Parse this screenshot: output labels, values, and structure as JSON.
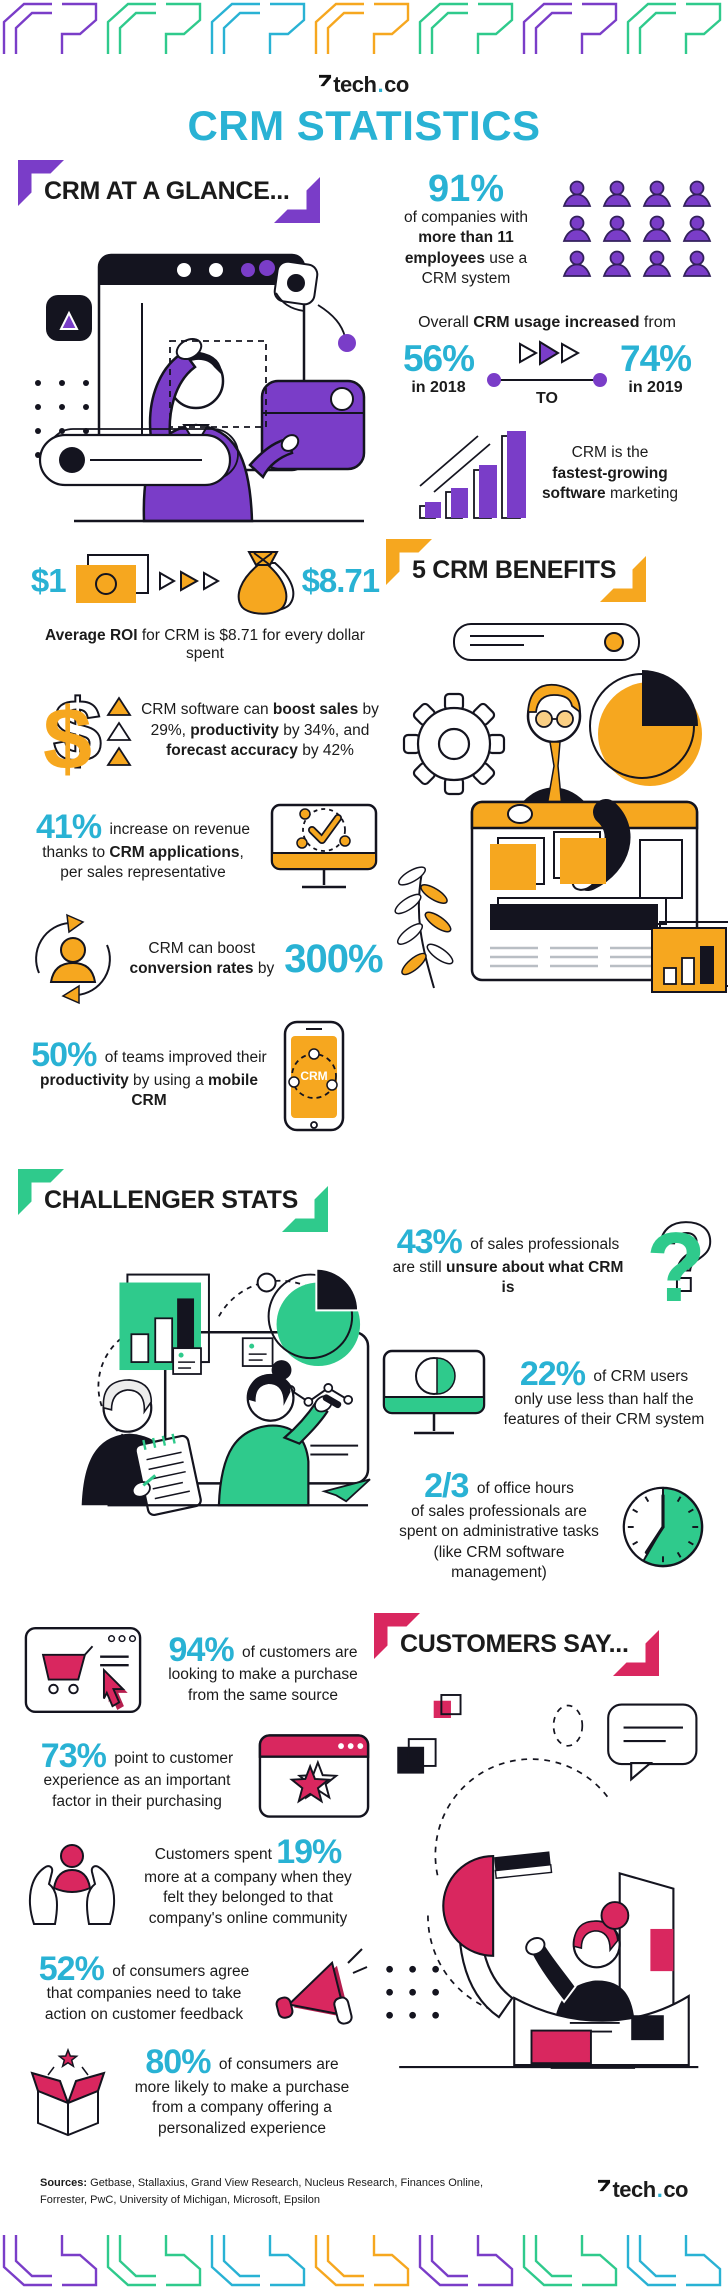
{
  "palette": {
    "cyan": "#29b2d4",
    "purple": "#7a3dc8",
    "yellow": "#f6a71f",
    "green": "#2fca8c",
    "pink": "#d9275f",
    "ink": "#1b1b1b"
  },
  "header": {
    "logo_text": "tech",
    "logo_dot": ".",
    "logo_suffix": "co",
    "title": "CRM STATISTICS"
  },
  "icons": {
    "dollar_glyph": "$",
    "question_glyph": "?"
  },
  "sections": {
    "glance": {
      "title": "CRM AT A GLANCE...",
      "stat_91": {
        "value": "91%",
        "text": [
          {
            "t": "of companies with"
          },
          {
            "br": 1
          },
          {
            "t": "more than 11",
            "b": 1
          },
          {
            "br": 1
          },
          {
            "t": "employees",
            "b": 1
          },
          {
            "t": " use a"
          },
          {
            "br": 1
          },
          {
            "t": "CRM system"
          }
        ]
      },
      "usage": {
        "intro": [
          {
            "t": "Overall "
          },
          {
            "t": "CRM usage increased",
            "b": 1
          },
          {
            "t": " from"
          }
        ],
        "from_value": "56%",
        "from_label": "in 2018",
        "to_word": "TO",
        "to_value": "74%",
        "to_label": "in 2019"
      },
      "growth": {
        "text": [
          {
            "t": "CRM is the"
          },
          {
            "br": 1
          },
          {
            "t": "fastest-growing",
            "b": 1
          },
          {
            "br": 1
          },
          {
            "t": "software",
            "b": 1
          },
          {
            "t": " marketing"
          }
        ]
      }
    },
    "roi": {
      "dollar_from": "$1",
      "dollar_to": "$8.71",
      "caption": [
        {
          "t": "Average ROI",
          "b": 1
        },
        {
          "t": " for CRM is $8.71 for every dollar spent"
        }
      ],
      "boost": [
        {
          "t": "CRM software can "
        },
        {
          "t": "boost sales",
          "b": 1
        },
        {
          "t": " by"
        },
        {
          "br": 1
        },
        {
          "t": "29%, "
        },
        {
          "t": "productivity",
          "b": 1
        },
        {
          "t": " by 34%, and"
        },
        {
          "br": 1
        },
        {
          "t": "forecast accuracy",
          "b": 1
        },
        {
          "t": " by 42%"
        }
      ],
      "stat_41": [
        {
          "t": "41% ",
          "big": 1
        },
        {
          "t": "increase on revenue"
        },
        {
          "br": 1
        },
        {
          "t": "thanks to "
        },
        {
          "t": "CRM applications",
          "b": 1
        },
        {
          "t": ","
        },
        {
          "br": 1
        },
        {
          "t": "per sales representative"
        }
      ],
      "conversion_text": [
        {
          "t": "CRM can boost"
        },
        {
          "br": 1
        },
        {
          "t": "conversion rates",
          "b": 1
        },
        {
          "t": " by"
        }
      ],
      "conversion_value": "300%",
      "stat_50": [
        {
          "t": "50% ",
          "big": 1
        },
        {
          "t": "of teams improved their"
        },
        {
          "br": 1
        },
        {
          "t": "productivity",
          "b": 1
        },
        {
          "t": " by using a "
        },
        {
          "t": "mobile CRM",
          "b": 1
        }
      ],
      "phone_label": "CRM"
    },
    "benefits": {
      "title": "5 CRM BENEFITS"
    },
    "challenger": {
      "title": "CHALLENGER STATS",
      "stat_43": [
        {
          "t": "43% ",
          "big": 1
        },
        {
          "t": "of sales professionals"
        },
        {
          "br": 1
        },
        {
          "t": "are still "
        },
        {
          "t": "unsure about what CRM is",
          "b": 1
        }
      ],
      "stat_22": [
        {
          "t": "22% ",
          "big": 1
        },
        {
          "t": "of CRM users"
        },
        {
          "br": 1
        },
        {
          "t": "only use less than half the"
        },
        {
          "br": 1
        },
        {
          "t": "features of their CRM system"
        }
      ],
      "stat_two_thirds": [
        {
          "t": "2/3 ",
          "big": 1
        },
        {
          "t": "of office hours"
        },
        {
          "br": 1
        },
        {
          "t": "of sales professionals are"
        },
        {
          "br": 1
        },
        {
          "t": "spent on administrative tasks"
        },
        {
          "br": 1
        },
        {
          "t": "(like CRM software management)"
        }
      ]
    },
    "customers": {
      "title": "CUSTOMERS SAY...",
      "stat_94": [
        {
          "t": "94% ",
          "big": 1
        },
        {
          "t": "of customers are"
        },
        {
          "br": 1
        },
        {
          "t": "looking to make a purchase"
        },
        {
          "br": 1
        },
        {
          "t": "from the same source"
        }
      ],
      "stat_73": [
        {
          "t": "73% ",
          "big": 1
        },
        {
          "t": "point to customer"
        },
        {
          "br": 1
        },
        {
          "t": "experience as an important"
        },
        {
          "br": 1
        },
        {
          "t": "factor in their purchasing"
        }
      ],
      "stat_19": [
        {
          "t": "Customers spent "
        },
        {
          "t": "19%",
          "big": 1
        },
        {
          "br": 1
        },
        {
          "t": "more at a company when they"
        },
        {
          "br": 1
        },
        {
          "t": "felt they belonged to that"
        },
        {
          "br": 1
        },
        {
          "t": "company's online community"
        }
      ],
      "stat_52": [
        {
          "t": "52% ",
          "big": 1
        },
        {
          "t": "of consumers agree"
        },
        {
          "br": 1
        },
        {
          "t": "that companies need to take"
        },
        {
          "br": 1
        },
        {
          "t": "action on customer feedback"
        }
      ],
      "stat_80": [
        {
          "t": "80% ",
          "big": 1
        },
        {
          "t": "of consumers are"
        },
        {
          "br": 1
        },
        {
          "t": "more likely to make a purchase"
        },
        {
          "br": 1
        },
        {
          "t": "from a company offering a"
        },
        {
          "br": 1
        },
        {
          "t": "personalized experience"
        }
      ]
    }
  },
  "footer": {
    "sources": [
      {
        "t": "Sources:",
        "b": 1
      },
      {
        "t": " Getbase, Stallaxius, Grand View Research, Nucleus Research, Finances Online,"
      },
      {
        "br": 1
      },
      {
        "t": "Forrester, PwC, University of Michigan, Microsoft, Epsilon"
      }
    ],
    "logo_text": "tech",
    "logo_dot": ".",
    "logo_suffix": "co"
  }
}
